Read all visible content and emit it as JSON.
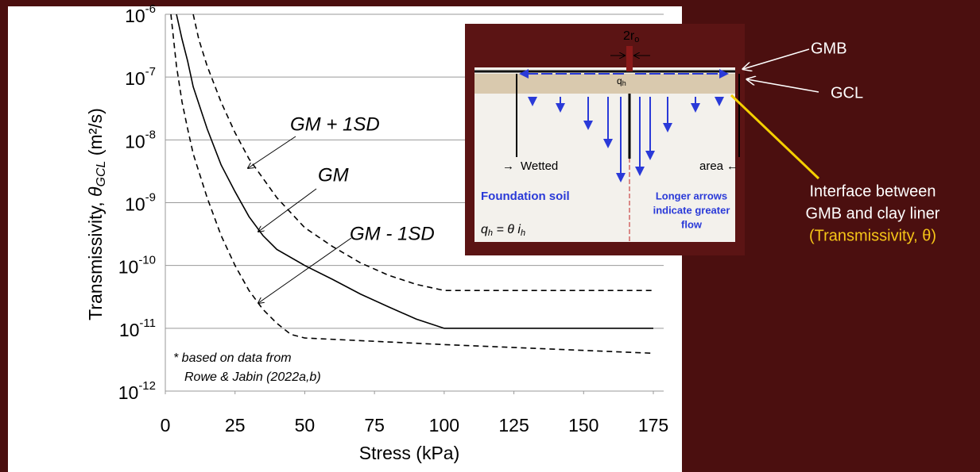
{
  "chart_data": {
    "type": "line",
    "ylabel": {
      "prefix": "Transmissivity, ",
      "symbol": "θ",
      "subscript": "GCL",
      "suffix": " (m²/s)"
    },
    "xlabel": "Stress (kPa)",
    "xlim": [
      0,
      175
    ],
    "xticks": [
      0,
      25,
      50,
      75,
      100,
      125,
      150,
      175
    ],
    "ylim": [
      1e-12,
      1e-06
    ],
    "log_y": true,
    "grid": true,
    "yticks": [
      {
        "value": 1e-06,
        "label": "10",
        "exponent": "-6"
      },
      {
        "value": 1e-07,
        "label": "10",
        "exponent": "-7"
      },
      {
        "value": 1e-08,
        "label": "10",
        "exponent": "-8"
      },
      {
        "value": 1e-09,
        "label": "10",
        "exponent": "-9"
      },
      {
        "value": 1e-10,
        "label": "10",
        "exponent": "-10"
      },
      {
        "value": 1e-11,
        "label": "10",
        "exponent": "-11"
      },
      {
        "value": 1e-12,
        "label": "10",
        "exponent": "-12"
      }
    ],
    "series": [
      {
        "name": "GM + 1SD",
        "color": "#000000",
        "dashed": true,
        "x": [
          10,
          12,
          15,
          20,
          25,
          30,
          40,
          50,
          60,
          70,
          80,
          90,
          100,
          175
        ],
        "values": [
          1e-06,
          4e-07,
          1.5e-07,
          4e-08,
          1.3e-08,
          5e-09,
          1.2e-09,
          4e-10,
          2e-10,
          1.1e-10,
          7e-11,
          5e-11,
          4e-11,
          4e-11
        ]
      },
      {
        "name": "GM",
        "color": "#000000",
        "dashed": false,
        "x": [
          4,
          6,
          8,
          10,
          15,
          20,
          25,
          30,
          35,
          40,
          50,
          60,
          70,
          80,
          90,
          100,
          175
        ],
        "values": [
          1e-06,
          4e-07,
          1.8e-07,
          7e-08,
          1.5e-08,
          4e-09,
          1.5e-09,
          6e-10,
          3e-10,
          1.8e-10,
          1e-10,
          6e-11,
          3.5e-11,
          2.2e-11,
          1.4e-11,
          1e-11,
          1e-11
        ]
      },
      {
        "name": "GM - 1SD",
        "color": "#000000",
        "dashed": true,
        "x": [
          2,
          4,
          6,
          8,
          10,
          15,
          20,
          25,
          30,
          35,
          40,
          45,
          50,
          100,
          175
        ],
        "values": [
          1e-06,
          1.5e-07,
          4e-08,
          1.5e-08,
          6e-09,
          1.2e-09,
          3e-10,
          1e-10,
          4e-11,
          2e-11,
          1.2e-11,
          8e-12,
          7e-12,
          5.5e-12,
          4e-12
        ]
      }
    ],
    "note": [
      "* based on data from",
      "Rowe & Jabin (2022a,b)"
    ]
  },
  "inset": {
    "r_base": "2r",
    "r_sub": "o",
    "q": "q",
    "q_sub": "h",
    "gmb": "GMB",
    "gcl": "GCL",
    "wetted": "Wetted",
    "area": "area",
    "foundation": "Foundation soil",
    "arrows_note": [
      "Longer arrows",
      "indicate greater",
      "flow"
    ],
    "equation": {
      "q": "q",
      "q_sub": "h",
      "mid": " = θ ",
      "i": "i",
      "i_sub": "h"
    }
  },
  "callout": [
    "Interface between",
    "GMB  and clay liner",
    "(Transmissivity, θ)"
  ]
}
